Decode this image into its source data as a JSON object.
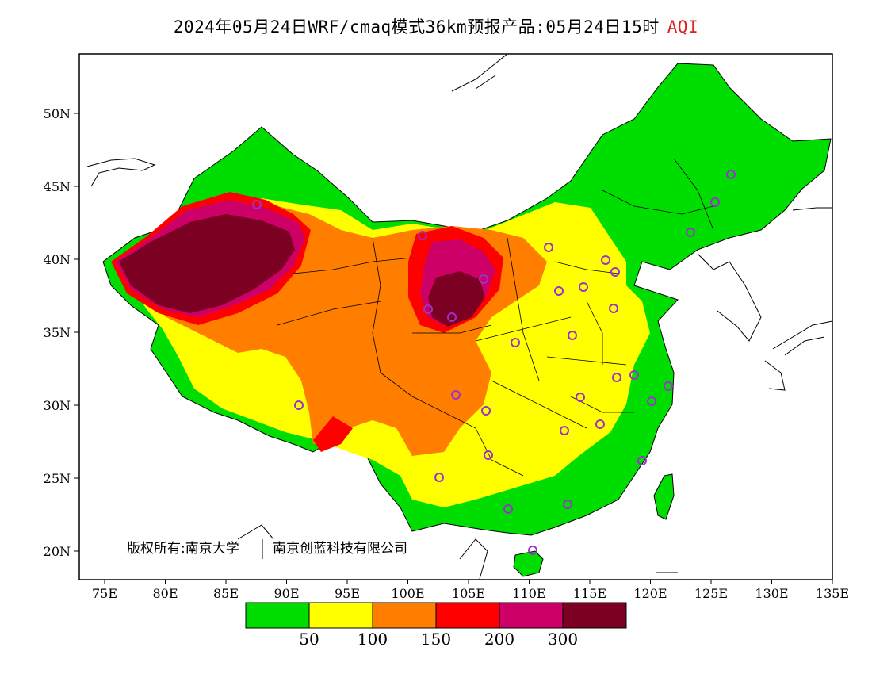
{
  "header": {
    "title": "2024年05月24日WRF/cmaq模式36km预报产品:05月24日15时",
    "highlight": "AQI"
  },
  "axes": {
    "x_ticks": [
      "75E",
      "80E",
      "85E",
      "90E",
      "95E",
      "100E",
      "105E",
      "110E",
      "115E",
      "120E",
      "125E",
      "130E",
      "135E"
    ],
    "y_ticks": [
      "50N",
      "45N",
      "40N",
      "35N",
      "30N",
      "25N",
      "20N"
    ]
  },
  "copyright": {
    "owner": "版权所有:南京大学",
    "partner": "南京创蓝科技有限公司"
  },
  "legend": {
    "levels": [
      {
        "color": "#00dd00",
        "label": "50"
      },
      {
        "color": "#ffff00",
        "label": "100"
      },
      {
        "color": "#ff7e00",
        "label": "150"
      },
      {
        "color": "#ff0000",
        "label": "200"
      },
      {
        "color": "#cc0066",
        "label": "300"
      },
      {
        "color": "#7b0021",
        "label": ""
      }
    ]
  },
  "colors": {
    "good": "#00dd00",
    "moderate": "#ffff00",
    "sensitive": "#ff7e00",
    "unhealthy": "#ff0000",
    "very_unhealthy": "#cc0066",
    "hazardous": "#7b0021",
    "station_marker": "#9933cc"
  }
}
